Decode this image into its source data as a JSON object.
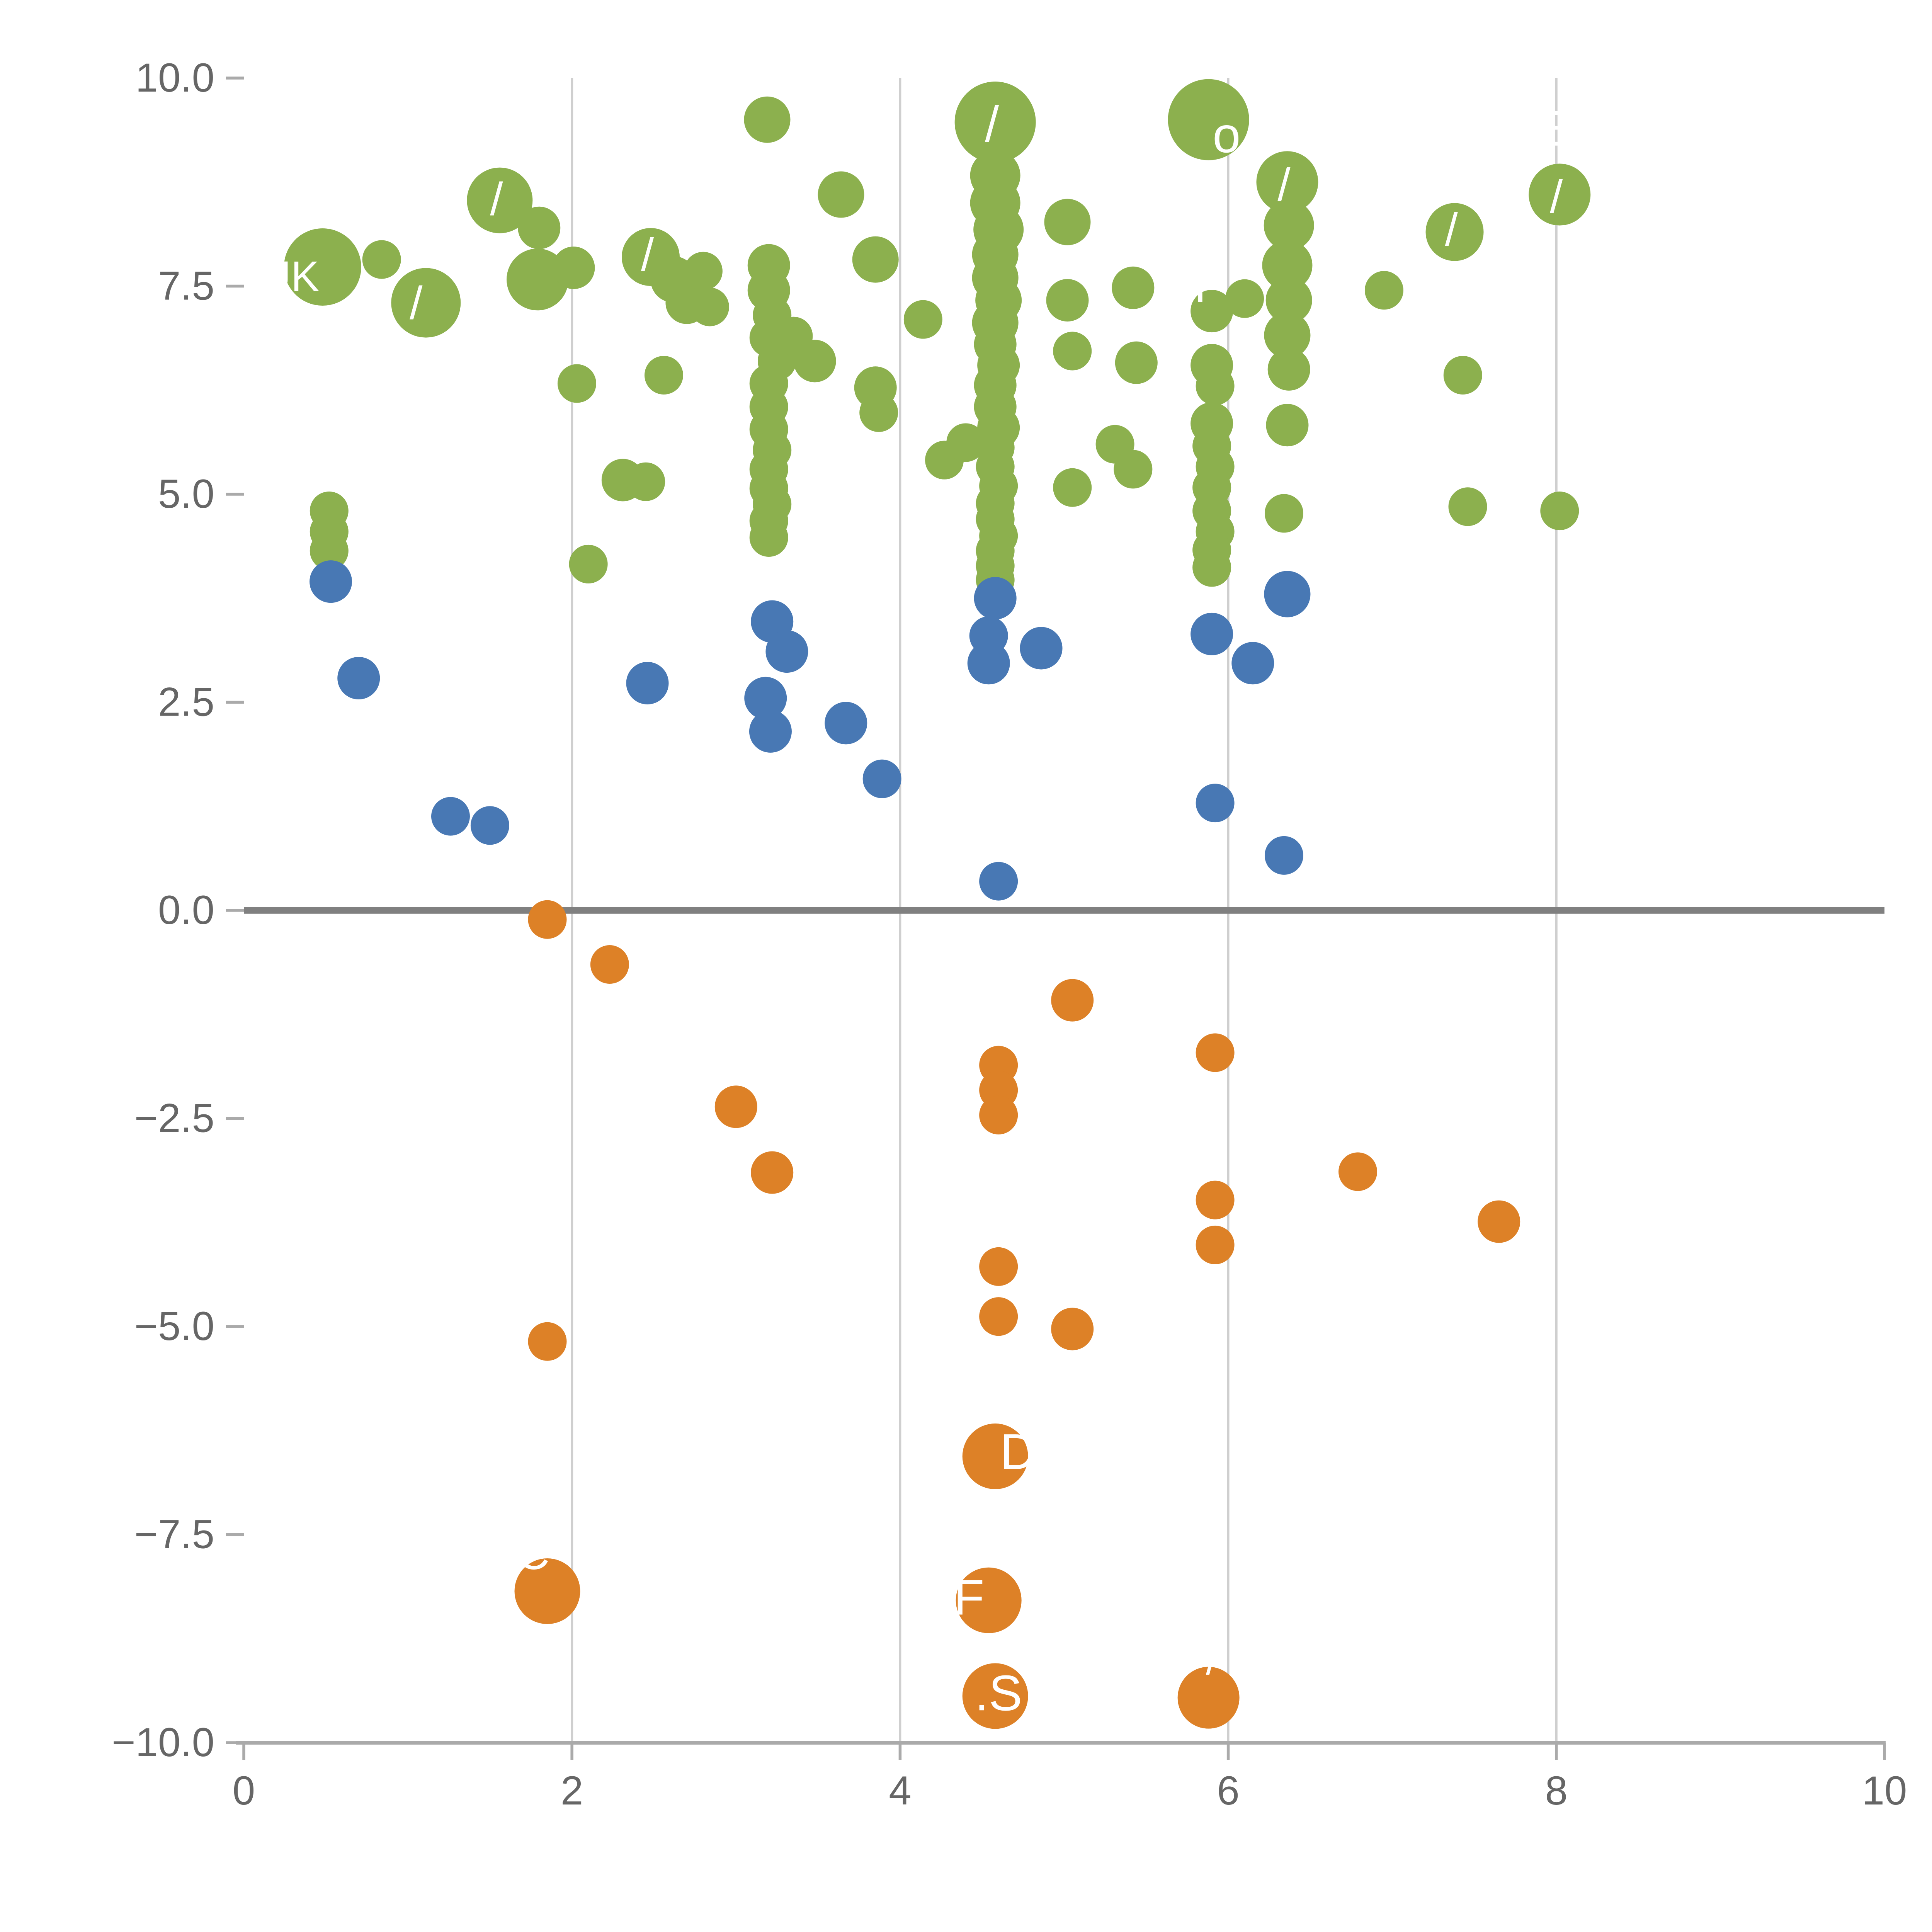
{
  "chart_data": {
    "type": "scatter",
    "title": "",
    "xlabel": "",
    "ylabel": "",
    "xlim": [
      0,
      10
    ],
    "ylim": [
      -10,
      10
    ],
    "x_ticks": [
      0,
      2,
      4,
      6,
      8,
      10
    ],
    "y_ticks": [
      10.0,
      7.5,
      5.0,
      2.5,
      0.0,
      -2.5,
      -5.0,
      -7.5,
      -10.0
    ],
    "x_tick_labels": [
      "0",
      "2",
      "4",
      "6",
      "8",
      "10"
    ],
    "y_tick_labels": [
      "10.0",
      "7.5",
      "5.0",
      "2.5",
      "0.0",
      "−2.5",
      "−5.0",
      "−7.5",
      "−10.0"
    ],
    "grid": "vertical gridlines at x = 2, 4, 6, 8",
    "zero_line": {
      "y": 0,
      "color": "#808080",
      "width": 3.5
    },
    "legend": "none",
    "colors": {
      "green": "#8cb04e",
      "blue": "#4878b4",
      "orange": "#dd8127"
    },
    "series": [
      {
        "name": "green",
        "color": "#8cb04e",
        "points": [
          [
            0.48,
            7.73,
            20
          ],
          [
            0.84,
            7.82,
            10
          ],
          [
            0.52,
            4.8,
            10
          ],
          [
            0.52,
            4.55,
            10
          ],
          [
            0.52,
            4.32,
            10
          ],
          [
            1.11,
            7.3,
            18
          ],
          [
            1.56,
            8.53,
            17
          ],
          [
            1.8,
            8.2,
            11
          ],
          [
            1.79,
            7.58,
            16
          ],
          [
            2.01,
            7.72,
            11
          ],
          [
            2.03,
            6.33,
            10
          ],
          [
            2.1,
            4.16,
            10
          ],
          [
            2.31,
            5.17,
            11
          ],
          [
            2.45,
            5.15,
            10
          ],
          [
            2.48,
            7.85,
            15
          ],
          [
            2.62,
            7.58,
            12
          ],
          [
            2.7,
            7.3,
            11
          ],
          [
            2.56,
            6.43,
            10
          ],
          [
            2.8,
            7.68,
            10
          ],
          [
            2.84,
            7.25,
            10
          ],
          [
            3.19,
            9.5,
            12
          ],
          [
            3.2,
            7.75,
            11
          ],
          [
            3.2,
            7.45,
            11
          ],
          [
            3.22,
            7.15,
            10
          ],
          [
            3.2,
            6.88,
            10
          ],
          [
            3.25,
            6.6,
            10
          ],
          [
            3.2,
            6.33,
            10
          ],
          [
            3.2,
            6.05,
            10
          ],
          [
            3.2,
            5.78,
            10
          ],
          [
            3.22,
            5.53,
            10
          ],
          [
            3.2,
            5.3,
            10
          ],
          [
            3.2,
            5.07,
            10
          ],
          [
            3.22,
            4.88,
            10
          ],
          [
            3.2,
            4.68,
            10
          ],
          [
            3.2,
            4.48,
            10
          ],
          [
            3.35,
            6.9,
            10
          ],
          [
            3.48,
            6.6,
            11
          ],
          [
            3.64,
            8.6,
            12
          ],
          [
            3.85,
            7.82,
            12
          ],
          [
            3.85,
            6.28,
            11
          ],
          [
            3.87,
            5.98,
            10
          ],
          [
            4.14,
            7.1,
            10
          ],
          [
            4.27,
            5.41,
            10
          ],
          [
            4.4,
            5.62,
            10
          ],
          [
            4.58,
            9.47,
            21
          ],
          [
            4.58,
            8.83,
            13
          ],
          [
            4.58,
            8.5,
            13
          ],
          [
            4.6,
            8.18,
            13
          ],
          [
            4.58,
            7.88,
            12
          ],
          [
            4.58,
            7.6,
            12
          ],
          [
            4.6,
            7.33,
            12
          ],
          [
            4.58,
            7.06,
            12
          ],
          [
            4.58,
            6.8,
            11
          ],
          [
            4.6,
            6.55,
            11
          ],
          [
            4.58,
            6.31,
            11
          ],
          [
            4.58,
            6.05,
            11
          ],
          [
            4.6,
            5.8,
            11
          ],
          [
            4.58,
            5.56,
            10
          ],
          [
            4.58,
            5.33,
            10
          ],
          [
            4.6,
            5.1,
            10
          ],
          [
            4.58,
            4.89,
            10
          ],
          [
            4.58,
            4.7,
            10
          ],
          [
            4.6,
            4.5,
            10
          ],
          [
            4.58,
            4.32,
            10
          ],
          [
            4.58,
            4.14,
            10
          ],
          [
            4.58,
            3.97,
            10
          ],
          [
            5.02,
            8.27,
            12
          ],
          [
            5.02,
            7.33,
            11
          ],
          [
            5.42,
            7.48,
            11
          ],
          [
            5.44,
            6.58,
            11
          ],
          [
            5.05,
            6.72,
            10
          ],
          [
            5.31,
            5.6,
            10
          ],
          [
            5.42,
            5.3,
            10
          ],
          [
            5.05,
            5.08,
            10
          ],
          [
            5.88,
            9.5,
            21
          ],
          [
            5.9,
            7.2,
            11
          ],
          [
            5.9,
            6.55,
            11
          ],
          [
            5.92,
            6.3,
            10
          ],
          [
            5.9,
            5.85,
            11
          ],
          [
            5.9,
            5.58,
            10
          ],
          [
            5.92,
            5.33,
            10
          ],
          [
            5.9,
            5.08,
            10
          ],
          [
            5.9,
            4.8,
            10
          ],
          [
            5.92,
            4.55,
            10
          ],
          [
            5.9,
            4.33,
            10
          ],
          [
            5.9,
            4.12,
            10
          ],
          [
            6.36,
            8.75,
            16
          ],
          [
            6.37,
            8.23,
            13
          ],
          [
            6.36,
            7.75,
            13
          ],
          [
            6.37,
            7.33,
            12
          ],
          [
            6.36,
            6.91,
            12
          ],
          [
            6.37,
            6.5,
            11
          ],
          [
            6.36,
            5.83,
            11
          ],
          [
            6.34,
            4.77,
            10
          ],
          [
            6.1,
            7.35,
            10
          ],
          [
            6.95,
            7.45,
            10
          ],
          [
            7.38,
            8.15,
            15
          ],
          [
            7.43,
            6.43,
            10
          ],
          [
            8.02,
            8.6,
            16
          ],
          [
            7.46,
            4.85,
            10
          ],
          [
            8.02,
            4.8,
            10
          ]
        ]
      },
      {
        "name": "blue",
        "color": "#4878b4",
        "points": [
          [
            0.53,
            3.95,
            11
          ],
          [
            0.7,
            2.79,
            11
          ],
          [
            1.26,
            1.13,
            10
          ],
          [
            1.5,
            1.02,
            10
          ],
          [
            2.46,
            2.73,
            11
          ],
          [
            3.22,
            3.47,
            11
          ],
          [
            3.31,
            3.11,
            11
          ],
          [
            3.18,
            2.55,
            11
          ],
          [
            3.21,
            2.15,
            11
          ],
          [
            3.67,
            2.25,
            11
          ],
          [
            3.89,
            1.58,
            10
          ],
          [
            4.58,
            3.75,
            11
          ],
          [
            4.54,
            3.3,
            10
          ],
          [
            4.54,
            2.97,
            11
          ],
          [
            4.86,
            3.15,
            11
          ],
          [
            4.6,
            0.35,
            10
          ],
          [
            5.9,
            3.32,
            11
          ],
          [
            6.15,
            2.97,
            11
          ],
          [
            5.92,
            1.29,
            10
          ],
          [
            6.34,
            0.66,
            10
          ],
          [
            6.36,
            3.8,
            12
          ]
        ]
      },
      {
        "name": "orange",
        "color": "#dd8127",
        "points": [
          [
            1.85,
            -0.11,
            10
          ],
          [
            2.23,
            -0.65,
            10
          ],
          [
            5.05,
            -1.08,
            11
          ],
          [
            5.92,
            -1.71,
            10
          ],
          [
            3.0,
            -2.36,
            11
          ],
          [
            4.6,
            -1.86,
            10
          ],
          [
            4.6,
            -2.16,
            10
          ],
          [
            4.6,
            -2.46,
            10
          ],
          [
            3.22,
            -3.15,
            11
          ],
          [
            5.92,
            -3.48,
            10
          ],
          [
            6.79,
            -3.14,
            10
          ],
          [
            7.65,
            -3.74,
            11
          ],
          [
            5.92,
            -4.02,
            10
          ],
          [
            4.6,
            -4.28,
            10
          ],
          [
            4.6,
            -4.88,
            10
          ],
          [
            5.05,
            -5.03,
            11
          ],
          [
            1.85,
            -5.18,
            10
          ],
          [
            4.58,
            -6.56,
            17
          ],
          [
            1.85,
            -8.18,
            17
          ],
          [
            4.54,
            -8.29,
            17
          ],
          [
            4.58,
            -9.44,
            17
          ],
          [
            5.88,
            -9.46,
            16
          ]
        ]
      }
    ],
    "point_labels": [
      {
        "text": "UK",
        "x": 0.28,
        "y": 7.62,
        "size": 22
      },
      {
        "text": "o",
        "x": 5.99,
        "y": 9.32,
        "size": 26
      },
      {
        "text": "M",
        "x": 5.74,
        "y": 7.52,
        "size": 26
      },
      {
        "text": "E",
        "x": 7.98,
        "y": 9.4,
        "size": 26
      },
      {
        "text": "D",
        "x": 4.72,
        "y": -6.5,
        "size": 26
      },
      {
        "text": "DC",
        "x": 1.66,
        "y": -7.72,
        "size": 24
      },
      {
        "text": "F",
        "x": 4.42,
        "y": -8.25,
        "size": 26
      },
      {
        "text": ".S",
        "x": 4.6,
        "y": -9.4,
        "size": 26
      },
      {
        "text": "/",
        "x": 1.05,
        "y": 7.3,
        "size": 24
      },
      {
        "text": "/",
        "x": 1.54,
        "y": 8.55,
        "size": 24
      },
      {
        "text": "/",
        "x": 2.46,
        "y": 7.88,
        "size": 24
      },
      {
        "text": "/",
        "x": 4.56,
        "y": 9.45,
        "size": 26
      },
      {
        "text": "/",
        "x": 6.34,
        "y": 8.72,
        "size": 24
      },
      {
        "text": "/",
        "x": 7.36,
        "y": 8.18,
        "size": 24
      },
      {
        "text": "/",
        "x": 8.0,
        "y": 8.58,
        "size": 24
      },
      {
        "text": "/",
        "x": 5.9,
        "y": -9.0,
        "size": 22
      }
    ],
    "axis_style": {
      "tick_label_color": "#666666",
      "gridline_color": "#cfcfcf",
      "axis_line_color": "#aaaaaa",
      "background": "#ffffff"
    }
  }
}
